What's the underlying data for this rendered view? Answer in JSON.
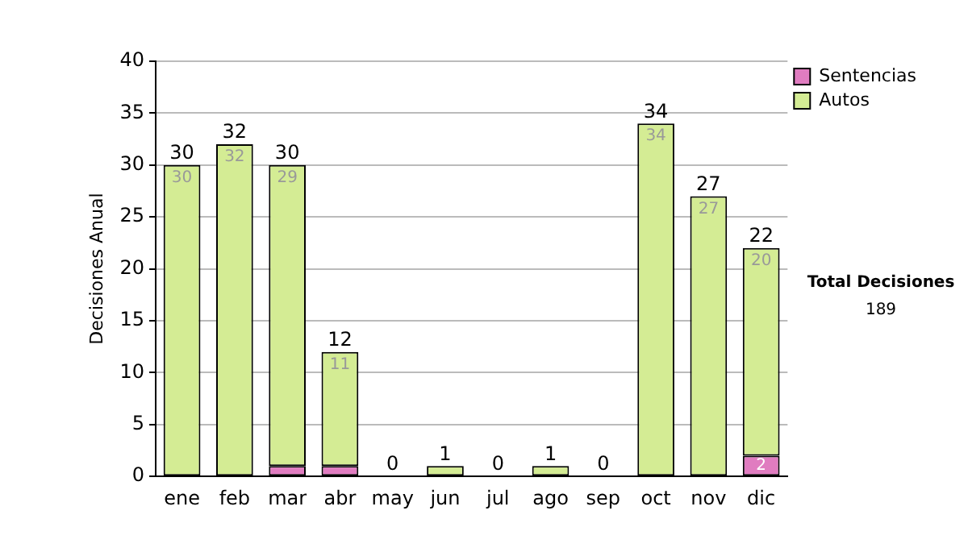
{
  "chart_data": {
    "type": "bar",
    "ylabel": "Decisiones Anual",
    "categories": [
      "ene",
      "feb",
      "mar",
      "abr",
      "may",
      "jun",
      "jul",
      "ago",
      "sep",
      "oct",
      "nov",
      "dic"
    ],
    "series": [
      {
        "name": "Sentencias",
        "color": "#e07cc0",
        "values": [
          0,
          0,
          1,
          1,
          0,
          0,
          0,
          0,
          0,
          0,
          0,
          2
        ],
        "value_labels": [
          null,
          null,
          null,
          null,
          null,
          null,
          null,
          null,
          null,
          null,
          null,
          "2"
        ]
      },
      {
        "name": "Autos",
        "color": "#d4ec94",
        "values": [
          30,
          32,
          29,
          11,
          0,
          1,
          0,
          1,
          0,
          34,
          27,
          20
        ],
        "value_labels": [
          "30",
          "32",
          "29",
          "11",
          null,
          null,
          null,
          null,
          null,
          "34",
          "27",
          "20"
        ]
      }
    ],
    "stacked": true,
    "totals": [
      "30",
      "32",
      "30",
      "12",
      "0",
      "1",
      "0",
      "1",
      "0",
      "34",
      "27",
      "22"
    ],
    "ylim": [
      0,
      40
    ],
    "yticks": [
      0,
      5,
      10,
      15,
      20,
      25,
      30,
      35,
      40
    ],
    "grid": "y",
    "legend": "right",
    "annotations": [
      "Total Decisiones",
      "189"
    ]
  }
}
